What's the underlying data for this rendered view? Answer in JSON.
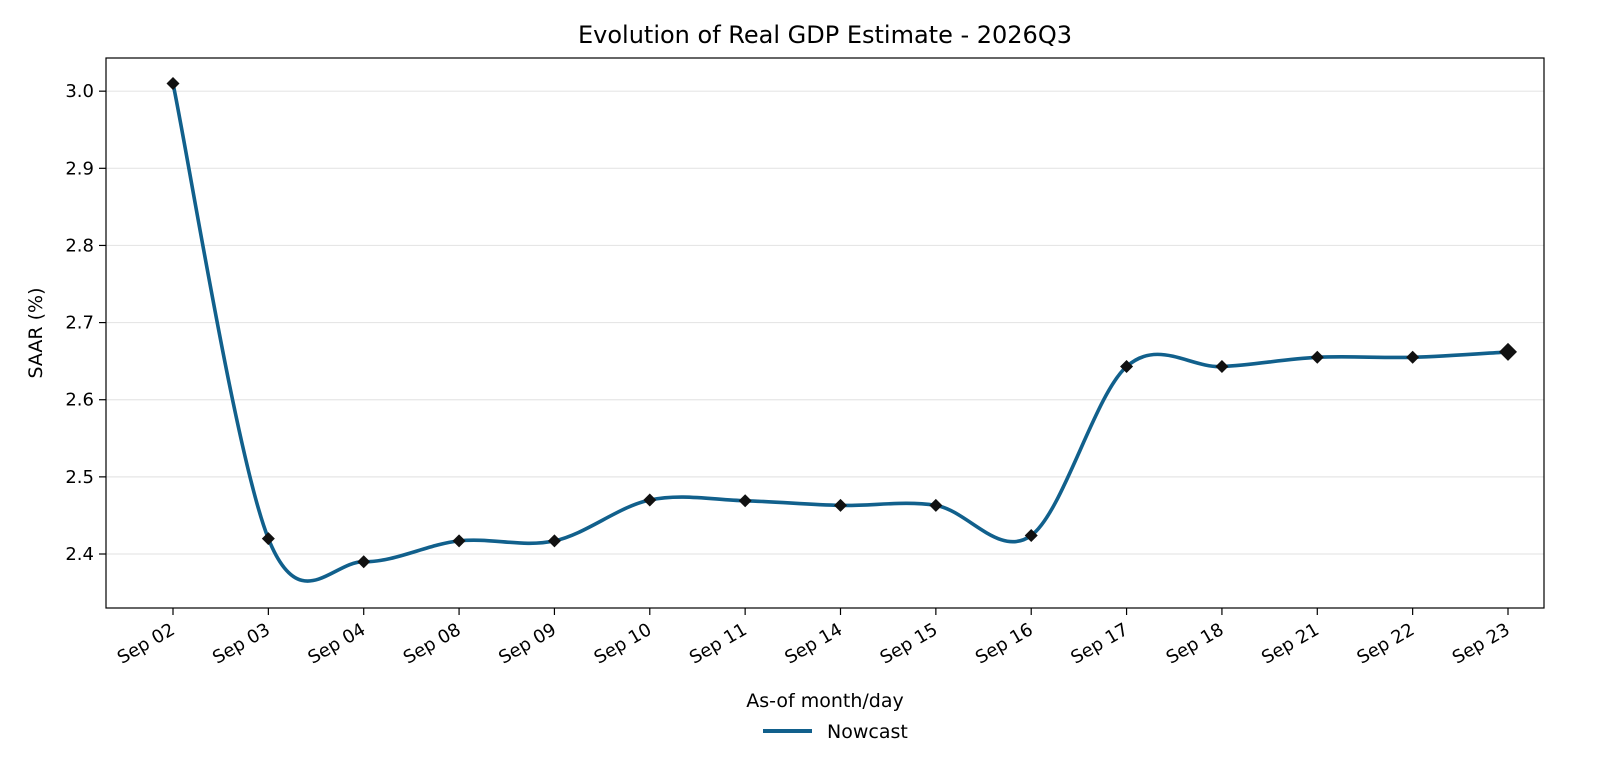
{
  "chart_data": {
    "type": "line",
    "title": "Evolution of Real GDP Estimate - 2026Q3",
    "xlabel": "As-of month/day",
    "ylabel": "SAAR (%)",
    "categories": [
      "Sep 02",
      "Sep 03",
      "Sep 04",
      "Sep 08",
      "Sep 09",
      "Sep 10",
      "Sep 11",
      "Sep 14",
      "Sep 15",
      "Sep 16",
      "Sep 17",
      "Sep 18",
      "Sep 21",
      "Sep 22",
      "Sep 23"
    ],
    "series": [
      {
        "name": "Nowcast",
        "values": [
          3.01,
          2.42,
          2.39,
          2.417,
          2.417,
          2.47,
          2.469,
          2.463,
          2.463,
          2.424,
          2.643,
          2.643,
          2.655,
          2.655,
          2.662
        ]
      }
    ],
    "ylim": [
      2.33,
      3.043
    ],
    "yticks": [
      2.4,
      2.5,
      2.6,
      2.7,
      2.8,
      2.9,
      3.0
    ],
    "ytick_labels": [
      "2.4",
      "2.5",
      "2.6",
      "2.7",
      "2.8",
      "2.9",
      "3.0"
    ],
    "grid": "horizontal",
    "legend": "bottom-center",
    "line_color": "#11608c",
    "marker_color": "#111111"
  }
}
